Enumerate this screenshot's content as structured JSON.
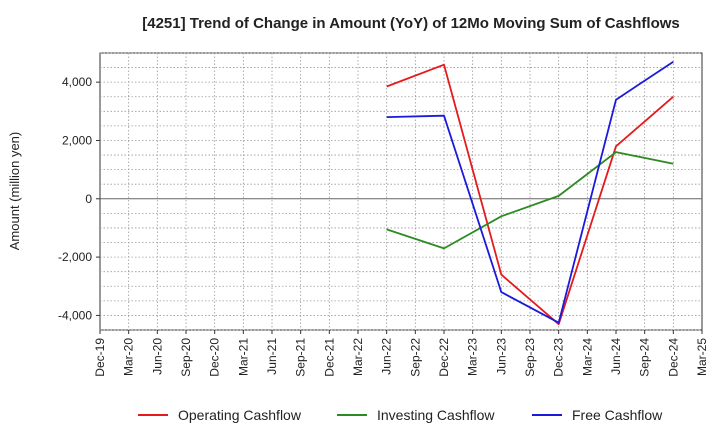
{
  "chart_data": {
    "type": "line",
    "title": "[4251]  Trend of Change in Amount (YoY) of 12Mo Moving Sum of Cashflows",
    "xlabel": "",
    "ylabel": "Amount (million yen)",
    "ylim": [
      -4500,
      5000
    ],
    "yticks": [
      4000,
      2000,
      0,
      -2000,
      -4000
    ],
    "ytick_labels": [
      "4,000",
      "2,000",
      "0",
      "-2,000",
      "-4,000"
    ],
    "categories": [
      "Dec-19",
      "Mar-20",
      "Jun-20",
      "Sep-20",
      "Dec-20",
      "Mar-21",
      "Jun-21",
      "Sep-21",
      "Dec-21",
      "Mar-22",
      "Jun-22",
      "Sep-22",
      "Dec-22",
      "Mar-23",
      "Jun-23",
      "Sep-23",
      "Dec-23",
      "Mar-24",
      "Jun-24",
      "Sep-24",
      "Dec-24",
      "Mar-25"
    ],
    "series": [
      {
        "name": "Operating Cashflow",
        "color": "#e41a1c",
        "values": [
          null,
          null,
          null,
          null,
          null,
          null,
          null,
          null,
          null,
          null,
          3850,
          null,
          4600,
          null,
          -2600,
          null,
          -4300,
          null,
          1800,
          null,
          3500,
          null
        ]
      },
      {
        "name": "Investing Cashflow",
        "color": "#2e8b22",
        "values": [
          null,
          null,
          null,
          null,
          null,
          null,
          null,
          null,
          null,
          null,
          -1050,
          null,
          -1700,
          null,
          -600,
          null,
          100,
          null,
          1600,
          null,
          1200,
          null
        ]
      },
      {
        "name": "Free Cashflow",
        "color": "#1a1adc",
        "values": [
          null,
          null,
          null,
          null,
          null,
          null,
          null,
          null,
          null,
          null,
          2800,
          null,
          2850,
          null,
          -3200,
          null,
          -4250,
          null,
          3400,
          null,
          4700,
          null
        ]
      }
    ],
    "grid": true,
    "legend_position": "bottom"
  }
}
